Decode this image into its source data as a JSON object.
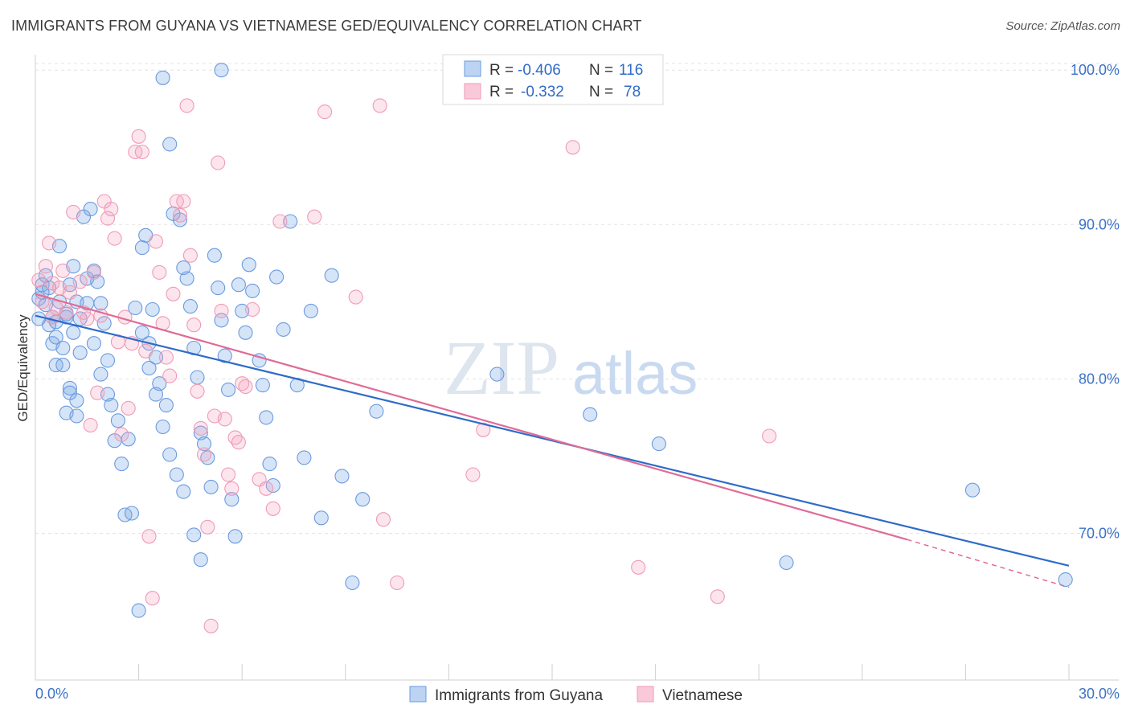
{
  "title": "IMMIGRANTS FROM GUYANA VS VIETNAMESE GED/EQUIVALENCY CORRELATION CHART",
  "source": "Source: ZipAtlas.com",
  "watermark": {
    "zip": "ZIP",
    "atlas": "atlas"
  },
  "colors": {
    "guyana": "#6a9be0",
    "vietnamese": "#ef9bb6",
    "guyana_line": "#2f6bc9",
    "vietnamese_line": "#e06b97",
    "tick_text": "#3b72c8"
  },
  "legend": {
    "rows": [
      {
        "r_label": "R = ",
        "r_value": "-0.406",
        "n_label": "N = ",
        "n_value": "116"
      },
      {
        "r_label": "R = ",
        "r_value": "-0.332",
        "n_label": "N = ",
        "n_value": "78"
      }
    ]
  },
  "chart_data": {
    "type": "scatter",
    "title": "IMMIGRANTS FROM GUYANA VS VIETNAMESE GED/EQUIVALENCY CORRELATION CHART",
    "xlabel": "",
    "ylabel": "GED/Equivalency",
    "xlim": [
      0,
      30
    ],
    "ylim": [
      60.5,
      101
    ],
    "x_tick_labels": [
      "0.0%",
      "30.0%"
    ],
    "y_ticks": [
      70,
      80,
      90,
      100
    ],
    "y_tick_labels": [
      "70.0%",
      "80.0%",
      "90.0%",
      "100.0%"
    ],
    "grid": true,
    "legend_position": "top-center",
    "series": [
      {
        "name": "Immigrants from Guyana",
        "r": -0.406,
        "n": 116,
        "trend": {
          "x": [
            0,
            30
          ],
          "y": [
            84.1,
            67.9
          ]
        },
        "points": [
          [
            0.1,
            85.2
          ],
          [
            0.2,
            86.1
          ],
          [
            0.3,
            84.8
          ],
          [
            0.1,
            83.9
          ],
          [
            0.4,
            85.9
          ],
          [
            0.5,
            84.0
          ],
          [
            0.6,
            83.7
          ],
          [
            0.3,
            86.7
          ],
          [
            0.5,
            82.3
          ],
          [
            0.6,
            80.9
          ],
          [
            0.8,
            82.0
          ],
          [
            0.7,
            88.6
          ],
          [
            0.9,
            84.0
          ],
          [
            1.0,
            86.1
          ],
          [
            1.2,
            85.0
          ],
          [
            1.1,
            87.3
          ],
          [
            1.3,
            83.9
          ],
          [
            1.0,
            79.4
          ],
          [
            0.9,
            77.8
          ],
          [
            1.2,
            78.6
          ],
          [
            1.4,
            90.5
          ],
          [
            1.6,
            91.0
          ],
          [
            1.7,
            87.0
          ],
          [
            1.8,
            86.3
          ],
          [
            1.9,
            84.9
          ],
          [
            2.0,
            83.6
          ],
          [
            2.1,
            81.2
          ],
          [
            2.2,
            78.3
          ],
          [
            2.3,
            76.0
          ],
          [
            2.5,
            74.5
          ],
          [
            2.6,
            71.2
          ],
          [
            2.8,
            71.3
          ],
          [
            3.0,
            65.0
          ],
          [
            3.1,
            88.5
          ],
          [
            3.2,
            89.3
          ],
          [
            3.4,
            84.5
          ],
          [
            3.3,
            82.3
          ],
          [
            3.5,
            81.4
          ],
          [
            3.6,
            79.7
          ],
          [
            3.8,
            78.3
          ],
          [
            3.9,
            95.2
          ],
          [
            4.0,
            90.7
          ],
          [
            4.2,
            90.3
          ],
          [
            4.3,
            87.2
          ],
          [
            4.4,
            86.5
          ],
          [
            4.5,
            84.7
          ],
          [
            4.6,
            82.0
          ],
          [
            4.7,
            80.1
          ],
          [
            4.8,
            76.5
          ],
          [
            4.9,
            75.8
          ],
          [
            5.0,
            74.9
          ],
          [
            5.1,
            73.0
          ],
          [
            5.2,
            88.0
          ],
          [
            5.3,
            85.9
          ],
          [
            5.4,
            83.8
          ],
          [
            5.5,
            81.5
          ],
          [
            5.6,
            79.3
          ],
          [
            5.7,
            72.2
          ],
          [
            5.8,
            69.8
          ],
          [
            3.7,
            99.5
          ],
          [
            5.9,
            86.1
          ],
          [
            6.0,
            84.4
          ],
          [
            6.1,
            83.0
          ],
          [
            6.2,
            87.4
          ],
          [
            6.3,
            85.7
          ],
          [
            6.5,
            81.2
          ],
          [
            6.6,
            79.6
          ],
          [
            6.7,
            77.5
          ],
          [
            6.8,
            74.5
          ],
          [
            6.9,
            73.1
          ],
          [
            5.4,
            100.0
          ],
          [
            7.0,
            86.6
          ],
          [
            7.2,
            83.2
          ],
          [
            7.4,
            90.2
          ],
          [
            7.6,
            79.6
          ],
          [
            7.8,
            74.9
          ],
          [
            8.0,
            84.4
          ],
          [
            8.3,
            71.0
          ],
          [
            8.6,
            86.7
          ],
          [
            8.9,
            73.7
          ],
          [
            9.2,
            66.8
          ],
          [
            9.5,
            72.2
          ],
          [
            9.9,
            77.9
          ],
          [
            13.4,
            80.3
          ],
          [
            16.1,
            77.7
          ],
          [
            18.1,
            75.8
          ],
          [
            21.8,
            68.1
          ],
          [
            27.2,
            72.8
          ],
          [
            29.9,
            67.0
          ],
          [
            0.2,
            85.6
          ],
          [
            0.4,
            83.5
          ],
          [
            0.6,
            82.7
          ],
          [
            0.8,
            80.9
          ],
          [
            1.0,
            79.1
          ],
          [
            1.2,
            77.6
          ],
          [
            1.5,
            84.9
          ],
          [
            1.7,
            82.3
          ],
          [
            1.9,
            80.3
          ],
          [
            2.1,
            79.0
          ],
          [
            2.4,
            77.3
          ],
          [
            2.7,
            76.1
          ],
          [
            2.9,
            84.6
          ],
          [
            3.1,
            83.0
          ],
          [
            3.3,
            80.7
          ],
          [
            3.5,
            79.0
          ],
          [
            3.7,
            76.9
          ],
          [
            3.9,
            75.1
          ],
          [
            4.1,
            73.8
          ],
          [
            4.3,
            72.7
          ],
          [
            4.6,
            69.9
          ],
          [
            4.8,
            68.3
          ],
          [
            0.7,
            85.0
          ],
          [
            0.9,
            84.2
          ],
          [
            1.1,
            83.0
          ],
          [
            1.3,
            81.7
          ],
          [
            1.5,
            86.5
          ]
        ]
      },
      {
        "name": "Vietnamese",
        "r": -0.332,
        "n": 78,
        "trend": {
          "x": [
            0,
            25.3
          ],
          "y": [
            85.5,
            69.6
          ]
        },
        "trend_dashed": {
          "x": [
            25.3,
            30
          ],
          "y": [
            69.6,
            66.5
          ]
        },
        "points": [
          [
            0.1,
            86.4
          ],
          [
            0.2,
            85.0
          ],
          [
            0.3,
            87.3
          ],
          [
            0.4,
            88.8
          ],
          [
            0.5,
            86.2
          ],
          [
            0.6,
            84.6
          ],
          [
            0.7,
            85.9
          ],
          [
            0.8,
            87.0
          ],
          [
            0.9,
            84.3
          ],
          [
            1.0,
            85.6
          ],
          [
            1.1,
            90.8
          ],
          [
            1.3,
            86.3
          ],
          [
            1.4,
            84.3
          ],
          [
            1.5,
            83.9
          ],
          [
            1.6,
            77.0
          ],
          [
            1.7,
            86.9
          ],
          [
            1.8,
            79.1
          ],
          [
            1.9,
            84.1
          ],
          [
            2.0,
            91.5
          ],
          [
            2.1,
            90.4
          ],
          [
            2.2,
            91.0
          ],
          [
            2.3,
            89.1
          ],
          [
            2.4,
            82.4
          ],
          [
            2.5,
            76.4
          ],
          [
            2.6,
            84.0
          ],
          [
            2.7,
            78.1
          ],
          [
            2.8,
            82.3
          ],
          [
            2.9,
            94.7
          ],
          [
            3.0,
            95.7
          ],
          [
            3.1,
            94.7
          ],
          [
            3.2,
            81.8
          ],
          [
            3.3,
            69.8
          ],
          [
            3.4,
            65.8
          ],
          [
            3.5,
            88.9
          ],
          [
            3.6,
            86.9
          ],
          [
            3.7,
            83.6
          ],
          [
            3.8,
            81.4
          ],
          [
            3.9,
            80.2
          ],
          [
            4.0,
            85.5
          ],
          [
            4.1,
            91.5
          ],
          [
            4.2,
            90.6
          ],
          [
            4.3,
            91.5
          ],
          [
            4.4,
            97.7
          ],
          [
            4.5,
            88.0
          ],
          [
            4.6,
            83.5
          ],
          [
            4.7,
            79.2
          ],
          [
            4.8,
            76.8
          ],
          [
            4.9,
            75.1
          ],
          [
            5.0,
            70.4
          ],
          [
            5.1,
            64.0
          ],
          [
            5.2,
            77.6
          ],
          [
            5.3,
            94.0
          ],
          [
            5.4,
            84.4
          ],
          [
            5.5,
            77.4
          ],
          [
            5.6,
            73.8
          ],
          [
            5.7,
            72.9
          ],
          [
            5.8,
            76.2
          ],
          [
            5.9,
            75.9
          ],
          [
            6.0,
            79.7
          ],
          [
            6.1,
            79.5
          ],
          [
            6.3,
            84.5
          ],
          [
            6.5,
            73.5
          ],
          [
            6.7,
            72.9
          ],
          [
            6.9,
            71.6
          ],
          [
            7.1,
            90.2
          ],
          [
            8.1,
            90.5
          ],
          [
            8.4,
            97.3
          ],
          [
            9.3,
            85.3
          ],
          [
            10.0,
            97.7
          ],
          [
            10.1,
            70.9
          ],
          [
            10.5,
            66.8
          ],
          [
            12.7,
            73.8
          ],
          [
            13.0,
            76.7
          ],
          [
            15.6,
            95.0
          ],
          [
            17.5,
            67.8
          ],
          [
            19.8,
            65.9
          ],
          [
            21.3,
            76.3
          ],
          [
            0.5,
            84.0
          ]
        ]
      }
    ]
  }
}
